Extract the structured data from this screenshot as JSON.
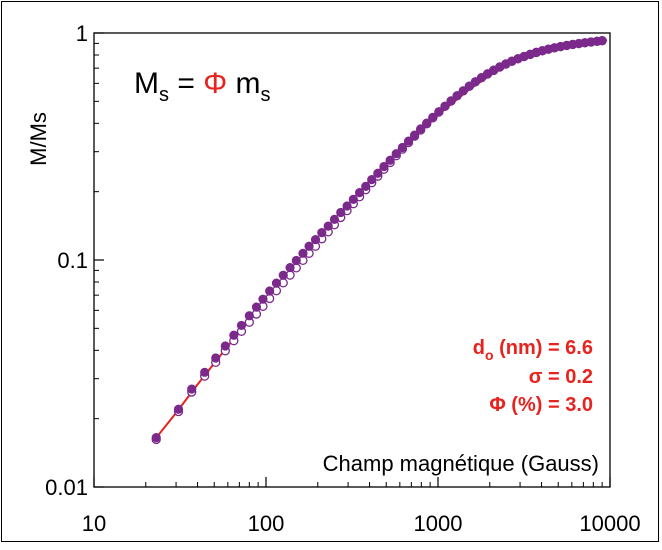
{
  "chart_data": {
    "type": "scatter",
    "xlabel": "Champ magnétique (Gauss)",
    "ylabel": "M/Ms",
    "xscale": "log",
    "yscale": "log",
    "xlim": [
      10,
      10000
    ],
    "ylim": [
      0.01,
      1
    ],
    "x_ticks": [
      10,
      100,
      1000,
      10000
    ],
    "x_tick_labels": [
      "10",
      "100",
      "1000",
      "10000"
    ],
    "y_ticks": [
      0.01,
      0.1,
      1
    ],
    "y_tick_labels": [
      "0.01",
      "0.1",
      "1"
    ],
    "grid": false,
    "equation": {
      "M": "M",
      "M_sub": "s",
      "eq": " = ",
      "phi": "Φ",
      "m": " m",
      "m_sub": "s"
    },
    "params": {
      "d_label": "d",
      "d_sub": "o",
      "d_rest": " (nm) = 6.6",
      "sigma": "σ = 0.2",
      "phi_line": "Φ (%) = 3.0"
    },
    "colors": {
      "data": "#7b2a8c",
      "fit": "#e8231e",
      "params": "#e8231e",
      "phi": "#e8231e"
    },
    "series": [
      {
        "marker": "open-circle",
        "x": [
          23,
          31,
          37,
          44,
          51,
          58,
          65,
          72,
          80,
          88,
          96,
          105,
          115,
          126,
          138,
          150,
          164,
          178,
          194,
          211,
          230,
          250,
          272,
          296,
          322,
          350,
          380,
          412,
          447,
          485,
          527,
          572,
          621,
          674,
          731,
          793,
          860,
          933,
          1012,
          1098,
          1191,
          1292,
          1402,
          1521,
          1650,
          1790,
          1942,
          2107,
          2286,
          2480,
          2690,
          2918,
          3166,
          3434,
          3726,
          4042,
          4385,
          4757,
          5161,
          5599,
          6074,
          6589,
          7148,
          7755,
          8413,
          9000
        ],
        "y": [
          0.0162,
          0.0215,
          0.0262,
          0.0308,
          0.0354,
          0.0398,
          0.0441,
          0.0485,
          0.0532,
          0.0578,
          0.0625,
          0.0677,
          0.0732,
          0.0793,
          0.0858,
          0.0923,
          0.0996,
          0.107,
          0.115,
          0.124,
          0.133,
          0.143,
          0.154,
          0.165,
          0.177,
          0.19,
          0.204,
          0.219,
          0.234,
          0.251,
          0.269,
          0.288,
          0.308,
          0.329,
          0.351,
          0.374,
          0.398,
          0.423,
          0.449,
          0.475,
          0.502,
          0.529,
          0.556,
          0.583,
          0.61,
          0.636,
          0.661,
          0.686,
          0.709,
          0.731,
          0.752,
          0.771,
          0.789,
          0.806,
          0.822,
          0.836,
          0.849,
          0.861,
          0.872,
          0.882,
          0.891,
          0.899,
          0.906,
          0.913,
          0.919,
          0.925
        ]
      },
      {
        "marker": "filled-circle",
        "x": [
          23,
          31,
          37,
          44,
          51,
          58,
          65,
          72,
          80,
          88,
          96,
          105,
          115,
          126,
          138,
          150,
          164,
          178,
          194,
          211,
          230,
          250,
          272,
          296,
          322,
          350,
          380,
          412,
          447,
          485,
          527,
          572,
          621,
          674,
          731,
          793,
          860,
          933,
          1012,
          1098,
          1191,
          1292,
          1402,
          1521,
          1650,
          1790,
          1942,
          2107,
          2286,
          2480,
          2690,
          2918,
          3166,
          3434,
          3726,
          4042,
          4385,
          4757,
          5161,
          5599,
          6074,
          6589,
          7148,
          7755,
          8413,
          9000
        ],
        "y": [
          0.0165,
          0.022,
          0.027,
          0.032,
          0.037,
          0.0418,
          0.0466,
          0.0515,
          0.0568,
          0.062,
          0.0672,
          0.073,
          0.0791,
          0.0857,
          0.0926,
          0.0995,
          0.107,
          0.115,
          0.123,
          0.132,
          0.141,
          0.151,
          0.162,
          0.173,
          0.185,
          0.198,
          0.211,
          0.226,
          0.241,
          0.258,
          0.275,
          0.294,
          0.313,
          0.334,
          0.355,
          0.378,
          0.401,
          0.425,
          0.45,
          0.476,
          0.502,
          0.529,
          0.556,
          0.583,
          0.609,
          0.635,
          0.66,
          0.684,
          0.707,
          0.729,
          0.75,
          0.769,
          0.787,
          0.804,
          0.82,
          0.834,
          0.848,
          0.86,
          0.871,
          0.881,
          0.89,
          0.898,
          0.906,
          0.913,
          0.919,
          0.925
        ]
      },
      {
        "marker": "fit-line",
        "x": [
          22,
          30,
          40,
          55,
          75,
          100,
          140,
          200,
          280,
          400,
          560,
          800,
          1100,
          1500,
          2100,
          3000,
          4200,
          6000,
          8000,
          9600
        ],
        "y": [
          0.0158,
          0.0212,
          0.0283,
          0.0384,
          0.0515,
          0.0672,
          0.0908,
          0.124,
          0.165,
          0.219,
          0.285,
          0.372,
          0.462,
          0.56,
          0.665,
          0.767,
          0.841,
          0.894,
          0.918,
          0.93
        ]
      }
    ]
  }
}
